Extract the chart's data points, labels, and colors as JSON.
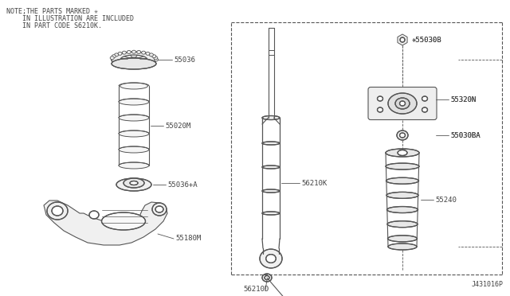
{
  "background_color": "#ffffff",
  "line_color": "#555555",
  "dark_color": "#444444",
  "note_line1": "NOTE;THE PARTS MARKED ✳",
  "note_line2": "    IN ILLUSTRATION ARE INCLUDED",
  "note_line3": "    IN PART CODE S6210K.",
  "part_id": "J431016P",
  "figsize": [
    6.4,
    3.72
  ],
  "dpi": 100
}
